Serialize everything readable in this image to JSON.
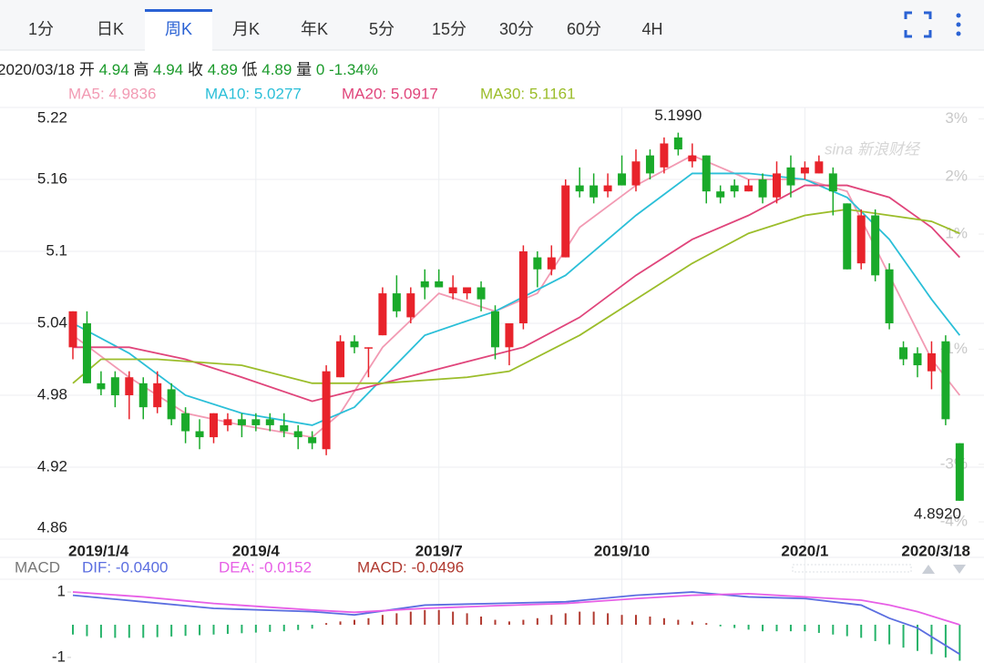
{
  "toolbar": {
    "tabs": [
      "1分",
      "日K",
      "周K",
      "月K",
      "年K",
      "5分",
      "15分",
      "30分",
      "60分",
      "4H"
    ],
    "active": 2
  },
  "info": {
    "date": "2020/03/18",
    "items": [
      {
        "label": "开",
        "value": "4.94"
      },
      {
        "label": "高",
        "value": "4.94"
      },
      {
        "label": "收",
        "value": "4.89"
      },
      {
        "label": "低",
        "value": "4.89"
      },
      {
        "label": "量",
        "value": "0"
      }
    ],
    "change": "-1.34%"
  },
  "watermark": "sina 新浪财经",
  "chart_data": [
    {
      "type": "candlestick",
      "up_color": "#e8232b",
      "down_color": "#1aaa2a",
      "categories": [
        "2019/1/4",
        null,
        null,
        null,
        null,
        null,
        null,
        null,
        null,
        null,
        null,
        null,
        null,
        "2019/4",
        null,
        null,
        null,
        null,
        null,
        null,
        null,
        null,
        null,
        null,
        null,
        null,
        "2019/7",
        null,
        null,
        null,
        null,
        null,
        null,
        null,
        null,
        null,
        null,
        null,
        null,
        "2019/10",
        null,
        null,
        null,
        null,
        null,
        null,
        null,
        null,
        null,
        null,
        null,
        null,
        "2020/1",
        null,
        null,
        null,
        null,
        null,
        null,
        null,
        null,
        null,
        null,
        "2020/3/18"
      ],
      "open": [
        5.02,
        5.04,
        4.99,
        4.995,
        4.98,
        4.99,
        4.97,
        4.985,
        4.965,
        4.95,
        4.945,
        4.955,
        4.96,
        4.96,
        4.96,
        4.955,
        4.95,
        4.945,
        4.935,
        4.995,
        5.025,
        5.02,
        5.03,
        5.065,
        5.045,
        5.075,
        5.075,
        5.065,
        5.065,
        5.07,
        5.05,
        5.02,
        5.04,
        5.095,
        5.085,
        5.095,
        5.155,
        5.155,
        5.15,
        5.165,
        5.155,
        5.18,
        5.17,
        5.195,
        5.175,
        5.18,
        5.15,
        5.155,
        5.15,
        5.16,
        5.145,
        5.17,
        5.165,
        5.165,
        5.165,
        5.14,
        5.09,
        5.13,
        5.085,
        5.02,
        5.015,
        5.0,
        5.025,
        4.94
      ],
      "high": [
        5.05,
        5.05,
        5.0,
        5.0,
        5.0,
        4.995,
        5.0,
        4.99,
        4.97,
        4.96,
        4.965,
        4.965,
        4.965,
        4.965,
        4.965,
        4.965,
        4.955,
        4.95,
        5.005,
        5.03,
        5.03,
        5.02,
        5.07,
        5.08,
        5.07,
        5.085,
        5.085,
        5.08,
        5.07,
        5.075,
        5.055,
        5.04,
        5.105,
        5.1,
        5.105,
        5.16,
        5.17,
        5.165,
        5.165,
        5.18,
        5.185,
        5.185,
        5.195,
        5.199,
        5.19,
        5.18,
        5.155,
        5.16,
        5.16,
        5.165,
        5.175,
        5.18,
        5.175,
        5.18,
        5.17,
        5.14,
        5.135,
        5.135,
        5.09,
        5.025,
        5.02,
        5.025,
        5.03,
        4.94
      ],
      "low": [
        5.01,
        4.99,
        4.98,
        4.97,
        4.96,
        4.96,
        4.965,
        4.955,
        4.94,
        4.935,
        4.94,
        4.95,
        4.945,
        4.95,
        4.95,
        4.945,
        4.935,
        4.935,
        4.93,
        4.995,
        5.015,
        4.995,
        5.03,
        5.045,
        5.04,
        5.06,
        5.07,
        5.06,
        5.06,
        5.05,
        5.01,
        5.005,
        5.035,
        5.07,
        5.08,
        5.095,
        5.145,
        5.14,
        5.145,
        5.155,
        5.15,
        5.16,
        5.165,
        5.18,
        5.17,
        5.14,
        5.14,
        5.145,
        5.15,
        5.14,
        5.14,
        5.145,
        5.16,
        5.165,
        5.13,
        5.085,
        5.085,
        5.075,
        5.035,
        5.005,
        4.995,
        4.985,
        4.955,
        4.892
      ],
      "close": [
        5.05,
        4.99,
        4.985,
        4.98,
        4.995,
        4.97,
        4.99,
        4.96,
        4.95,
        4.945,
        4.965,
        4.96,
        4.955,
        4.955,
        4.955,
        4.95,
        4.945,
        4.94,
        5.0,
        5.025,
        5.02,
        5.02,
        5.065,
        5.05,
        5.065,
        5.07,
        5.07,
        5.07,
        5.07,
        5.06,
        5.02,
        5.04,
        5.1,
        5.085,
        5.095,
        5.155,
        5.15,
        5.145,
        5.155,
        5.155,
        5.175,
        5.165,
        5.19,
        5.185,
        5.18,
        5.15,
        5.145,
        5.15,
        5.155,
        5.145,
        5.165,
        5.155,
        5.17,
        5.175,
        5.15,
        5.085,
        5.13,
        5.08,
        5.04,
        5.01,
        5.005,
        5.015,
        4.96,
        4.892
      ],
      "series": [
        {
          "name": "MA5: 4.9836",
          "color": "#f29ab3",
          "x": [
            0,
            4,
            8,
            12,
            17,
            19,
            22,
            26,
            30,
            33,
            36,
            40,
            44,
            48,
            52,
            55,
            58,
            61,
            63
          ],
          "values": [
            5.03,
            4.995,
            4.965,
            4.955,
            4.945,
            4.965,
            5.02,
            5.065,
            5.05,
            5.065,
            5.12,
            5.155,
            5.18,
            5.16,
            5.16,
            5.15,
            5.08,
            5.01,
            4.98
          ]
        },
        {
          "name": "MA10: 5.0277",
          "color": "#2bbfd8",
          "x": [
            0,
            4,
            8,
            12,
            17,
            20,
            25,
            30,
            35,
            40,
            44,
            48,
            52,
            55,
            58,
            61,
            63
          ],
          "values": [
            5.04,
            5.015,
            4.98,
            4.965,
            4.955,
            4.97,
            5.03,
            5.05,
            5.08,
            5.13,
            5.165,
            5.165,
            5.16,
            5.145,
            5.11,
            5.06,
            5.03
          ]
        },
        {
          "name": "MA20: 5.0917",
          "color": "#e0457b",
          "x": [
            0,
            4,
            8,
            12,
            17,
            22,
            27,
            32,
            36,
            40,
            44,
            48,
            52,
            55,
            58,
            61,
            63
          ],
          "values": [
            5.02,
            5.02,
            5.01,
            4.995,
            4.975,
            4.99,
            5.005,
            5.02,
            5.045,
            5.08,
            5.11,
            5.13,
            5.155,
            5.155,
            5.145,
            5.12,
            5.095
          ]
        },
        {
          "name": "MA30: 5.1161",
          "color": "#9bbd2a",
          "x": [
            0,
            2,
            6,
            12,
            17,
            22,
            28,
            31,
            36,
            40,
            44,
            48,
            52,
            55,
            58,
            61,
            63
          ],
          "values": [
            4.99,
            5.01,
            5.01,
            5.005,
            4.99,
            4.99,
            4.995,
            5.0,
            5.03,
            5.06,
            5.09,
            5.115,
            5.13,
            5.135,
            5.13,
            5.125,
            5.115
          ]
        }
      ],
      "ylim": [
        4.86,
        5.22
      ],
      "yticks": [
        4.86,
        4.92,
        4.98,
        5.04,
        5.1,
        5.16,
        5.22
      ],
      "y2lim": [
        -4.3,
        3.2
      ],
      "y2ticks": [
        {
          "value": 3,
          "label": "3%"
        },
        {
          "value": 2,
          "label": "2%"
        },
        {
          "value": 1,
          "label": "1%"
        },
        {
          "value": -1,
          "label": "-1%"
        },
        {
          "value": -3,
          "label": "-3%"
        },
        {
          "value": -4,
          "label": "-4%"
        }
      ],
      "annotations": [
        {
          "label": "5.1990",
          "value": 5.199
        },
        {
          "label": "4.8920",
          "value": 4.892
        }
      ],
      "grid": true
    },
    {
      "type": "macd",
      "title": "MACD",
      "name": "MACD: -0.0496",
      "up_color": "#b0392f",
      "down_color": "#26b36a",
      "values": [
        -0.3,
        -0.35,
        -0.4,
        -0.4,
        -0.4,
        -0.4,
        -0.38,
        -0.36,
        -0.34,
        -0.32,
        -0.3,
        -0.28,
        -0.26,
        -0.24,
        -0.22,
        -0.2,
        -0.16,
        -0.12,
        0.05,
        0.1,
        0.15,
        0.2,
        0.3,
        0.35,
        0.4,
        0.45,
        0.45,
        0.4,
        0.35,
        0.25,
        0.15,
        0.1,
        0.15,
        0.2,
        0.3,
        0.35,
        0.4,
        0.4,
        0.35,
        0.3,
        0.3,
        0.25,
        0.2,
        0.15,
        0.1,
        0.05,
        -0.05,
        -0.1,
        -0.15,
        -0.2,
        -0.2,
        -0.2,
        -0.2,
        -0.25,
        -0.3,
        -0.35,
        -0.4,
        -0.5,
        -0.6,
        -0.7,
        -0.8,
        -0.9,
        -1.0,
        -1.1
      ],
      "series": [
        {
          "name": "DIF: -0.0400",
          "color": "#5b6ee0",
          "x": [
            0,
            5,
            10,
            17,
            20,
            25,
            30,
            35,
            40,
            44,
            48,
            52,
            56,
            58,
            60,
            63
          ],
          "values": [
            0.9,
            0.7,
            0.5,
            0.4,
            0.3,
            0.6,
            0.65,
            0.7,
            0.9,
            1.0,
            0.85,
            0.8,
            0.6,
            0.2,
            -0.1,
            -0.9
          ]
        },
        {
          "name": "DEA: -0.0152",
          "color": "#e75fe6",
          "x": [
            0,
            5,
            10,
            17,
            20,
            25,
            30,
            35,
            40,
            44,
            48,
            52,
            56,
            58,
            60,
            63
          ],
          "values": [
            1.0,
            0.85,
            0.65,
            0.45,
            0.38,
            0.5,
            0.58,
            0.65,
            0.8,
            0.9,
            0.95,
            0.85,
            0.75,
            0.6,
            0.4,
            0.0
          ]
        }
      ],
      "ylim": [
        -1.17,
        1.28
      ],
      "yticks": [
        -1,
        1
      ]
    }
  ]
}
